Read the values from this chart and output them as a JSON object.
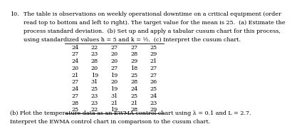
{
  "question_number": "10.",
  "line1": "The table is observations on weekly operational downtime on a critical equipment (order",
  "line2": "read top to bottom and left to right). The target value for the mean is 25.  (a) Estimate the",
  "line3": "process standard deviation.  (b) Set up and apply a tabular cusum chart for this process,",
  "line4": "using standardized values h = 5 and k = ½.  (c) Interpret the cusum chart.",
  "table": [
    [
      24,
      22,
      27,
      27,
      25
    ],
    [
      27,
      23,
      20,
      28,
      29
    ],
    [
      24,
      28,
      20,
      29,
      21
    ],
    [
      20,
      20,
      27,
      18,
      27
    ],
    [
      21,
      19,
      19,
      25,
      27
    ],
    [
      27,
      31,
      20,
      28,
      26
    ],
    [
      24,
      25,
      19,
      24,
      25
    ],
    [
      27,
      23,
      31,
      25,
      24
    ],
    [
      28,
      23,
      21,
      21,
      23
    ],
    [
      25,
      22,
      19,
      28,
      29
    ]
  ],
  "bottom_line1": "(b) Plot the temperature data as an EWMA control chart using λ = 0.1 and L = 2.7.",
  "bottom_line2": "Interpret the EWMA control chart in comparison to the cusum chart.",
  "bg_color": "#ffffff",
  "text_color": "#000000",
  "font_size": 5.8
}
